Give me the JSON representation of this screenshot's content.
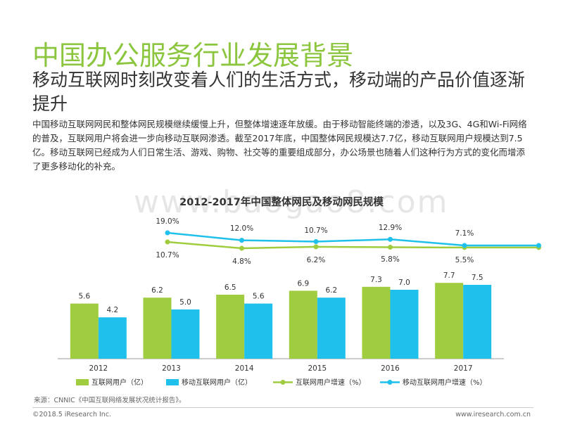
{
  "header": {
    "title": "中国办公服务行业发展背景",
    "subtitle": "移动互联网时刻改变着人们的生活方式，移动端的产品价值逐渐提升",
    "paragraph": "中国移动互联网网民和整体网民规模继续缓慢上升，但整体增速逐年放缓。由于移动智能终端的渗透，以及3G、4G和Wi-Fi网络的普及，互联网用户将会进一步向移动互联网渗透。截至2017年底，中国整体网民规模达7.7亿，移动互联网用户规模达到7.5亿。移动互联网已经成为人们日常生活、游戏、购物、社交等的重要组成部分，办公场景也随着人们这种行为方式的变化而增添了更多移动化的补充。"
  },
  "watermark": "www.baogao8.com",
  "chart_data": {
    "type": "bar",
    "title": "2012-2017年中国整体网民及移动网民规模",
    "categories": [
      "2012",
      "2013",
      "2014",
      "2015",
      "2016",
      "2017"
    ],
    "ylim": [
      0,
      9
    ],
    "bar_series": [
      {
        "name": "互联网用户（亿）",
        "values": [
          5.6,
          6.2,
          6.5,
          6.9,
          7.3,
          7.7
        ],
        "labels": [
          "5.6",
          "6.2",
          "6.5",
          "6.9",
          "7.3",
          "7.7"
        ],
        "color": "#9fcd3f"
      },
      {
        "name": "移动互联网用户（亿）",
        "values": [
          4.2,
          5.0,
          5.6,
          6.2,
          7.0,
          7.5
        ],
        "labels": [
          "4.2",
          "5.0",
          "5.6",
          "6.2",
          "7.0",
          "7.5"
        ],
        "color": "#1fc1ec"
      }
    ],
    "line_series": [
      {
        "name": "互联网用户增速（%）",
        "values": [
          10.7,
          4.8,
          6.2,
          5.8,
          5.5,
          5.5
        ],
        "labels": [
          "10.7%",
          "4.8%",
          "6.2%",
          "5.8%",
          "5.5%",
          "5.5%"
        ],
        "color": "#9fcd3f"
      },
      {
        "name": "移动互联网用户增速（%）",
        "values": [
          19.0,
          12.0,
          10.7,
          12.9,
          7.1,
          7.1
        ],
        "labels": [
          "19.0%",
          "12.0%",
          "10.7%",
          "12.9%",
          "7.1%",
          "7.1%"
        ],
        "color": "#1fc1ec"
      }
    ],
    "legend_position": "bottom",
    "grid": false
  },
  "footer": {
    "source": "来源：CNNIC《中国互联网络发展状况统计报告》。",
    "copyright": "©2018.5 iResearch Inc.",
    "website": "www.iresearch.com.cn"
  }
}
